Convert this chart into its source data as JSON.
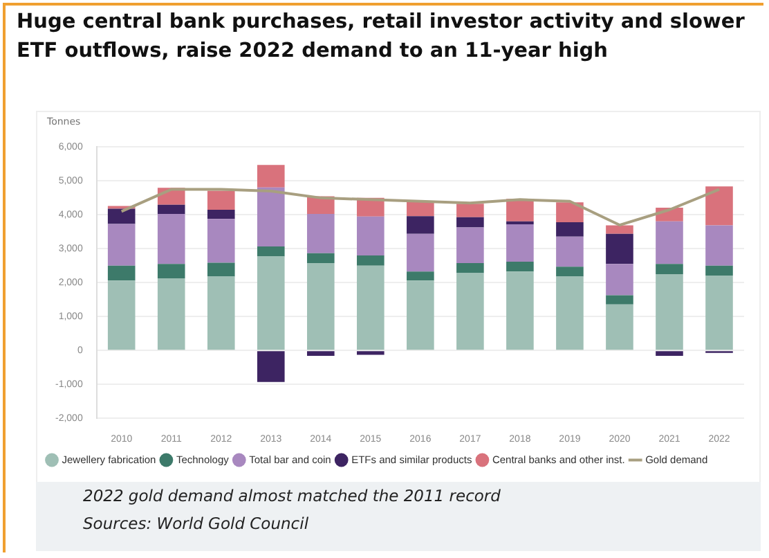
{
  "chart_data": {
    "type": "bar",
    "title": "Huge central bank purchases, retail investor activity and slower ETF outflows, raise 2022 demand to an 11-year high",
    "ylabel": "Tonnes",
    "annotations": [
      "2022 gold demand almost matched the 2011 record",
      "Sources: World Gold Council"
    ],
    "categories": [
      "2010",
      "2011",
      "2012",
      "2013",
      "2014",
      "2015",
      "2016",
      "2017",
      "2018",
      "2019",
      "2020",
      "2021",
      "2022"
    ],
    "stacked": true,
    "ylim": [
      -2000,
      6000
    ],
    "yticks": [
      {
        "value": -2000,
        "label": "-2,000"
      },
      {
        "value": -1000,
        "label": "-1,000"
      },
      0,
      {
        "value": 1000,
        "label": "1,000"
      },
      {
        "value": 2000,
        "label": "2,000"
      },
      {
        "value": 3000,
        "label": "3,000"
      },
      {
        "value": 4000,
        "label": "4,000"
      },
      {
        "value": 5000,
        "label": "5,000"
      },
      {
        "value": 6000,
        "label": "6,000"
      }
    ],
    "grid": "y",
    "legend": "bottom left",
    "marker": "none",
    "series": [
      {
        "name": "Jewellery fabrication",
        "color": "#9fbfb5",
        "values": [
          2060,
          2130,
          2180,
          2770,
          2580,
          2500,
          2060,
          2280,
          2330,
          2180,
          1360,
          2250,
          2210
        ]
      },
      {
        "name": "Technology",
        "color": "#3d7a6a",
        "values": [
          440,
          420,
          410,
          300,
          290,
          300,
          270,
          300,
          290,
          290,
          270,
          300,
          290
        ]
      },
      {
        "name": "Total bar and coin",
        "color": "#a888bf",
        "values": [
          1230,
          1480,
          1290,
          1740,
          1160,
          1150,
          1110,
          1050,
          1100,
          890,
          920,
          1260,
          1190
        ]
      },
      {
        "name": "ETFs and similar products",
        "color": "#3d2462",
        "values": [
          450,
          270,
          270,
          -930,
          -160,
          -130,
          520,
          300,
          90,
          420,
          890,
          -160,
          -70
        ]
      },
      {
        "name": "Central banks and other inst.",
        "color": "#d9727c",
        "values": [
          80,
          500,
          560,
          660,
          520,
          550,
          440,
          400,
          660,
          590,
          250,
          400,
          1150
        ]
      },
      {
        "name": "Gold demand",
        "type": "line",
        "color": "#a89f80",
        "values": [
          4100,
          4750,
          4750,
          4700,
          4500,
          4450,
          4400,
          4350,
          4450,
          4400,
          3700,
          4150,
          4750
        ]
      }
    ]
  }
}
